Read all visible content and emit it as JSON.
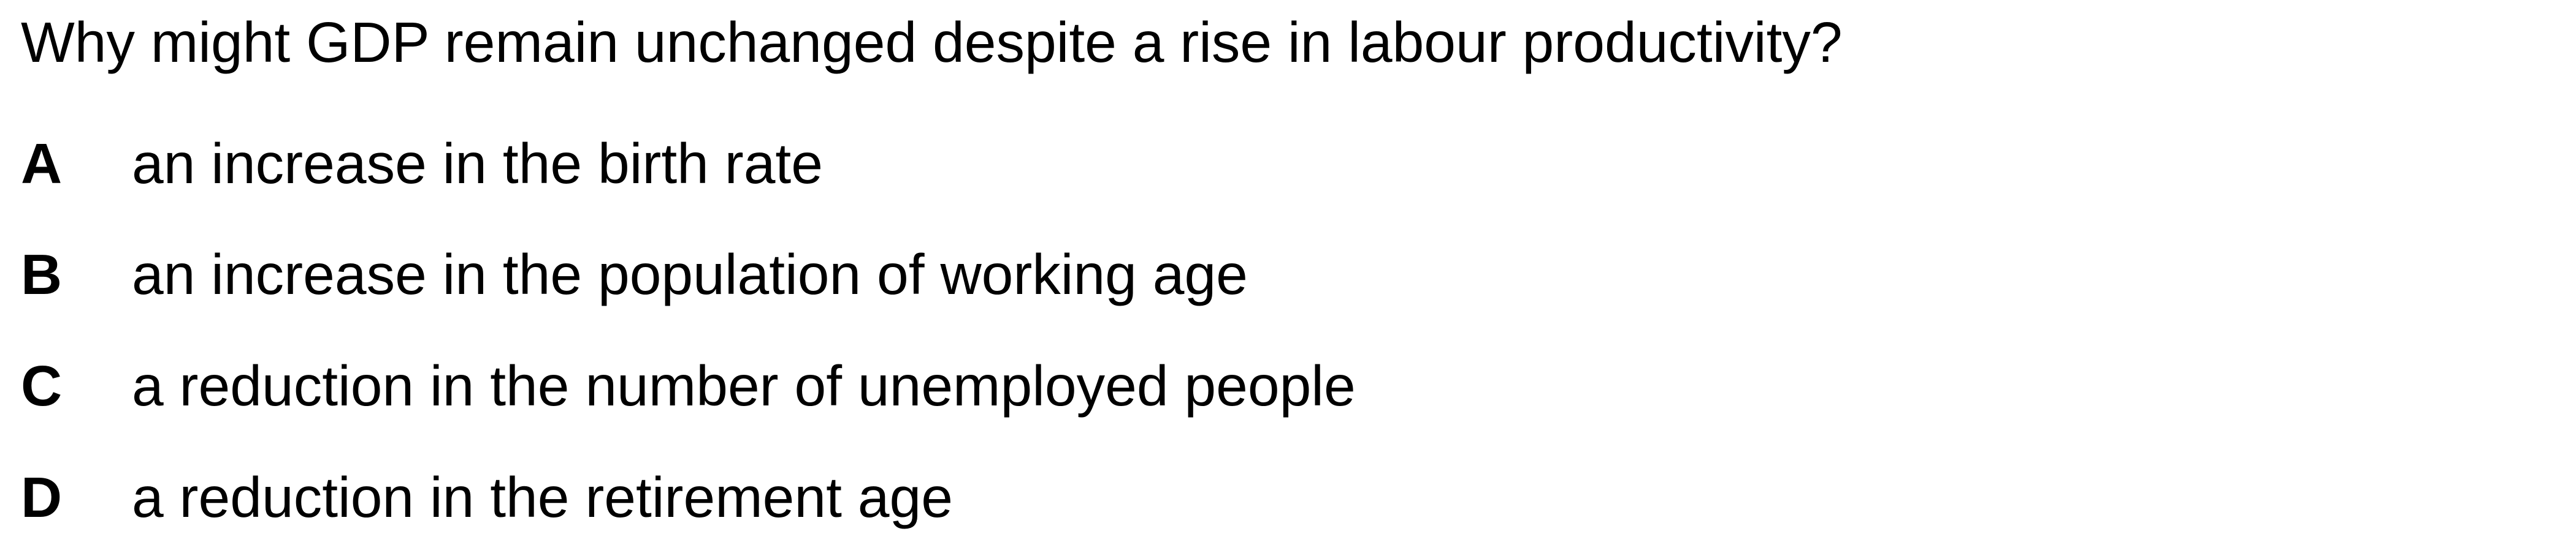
{
  "question": {
    "stem": "Why might GDP remain unchanged despite a rise in labour productivity?",
    "options": [
      {
        "letter": "A",
        "text": "an increase in the birth rate"
      },
      {
        "letter": "B",
        "text": "an increase in the population of working age"
      },
      {
        "letter": "C",
        "text": "a reduction in the number of unemployed people"
      },
      {
        "letter": "D",
        "text": "a reduction in the retirement age"
      }
    ]
  }
}
